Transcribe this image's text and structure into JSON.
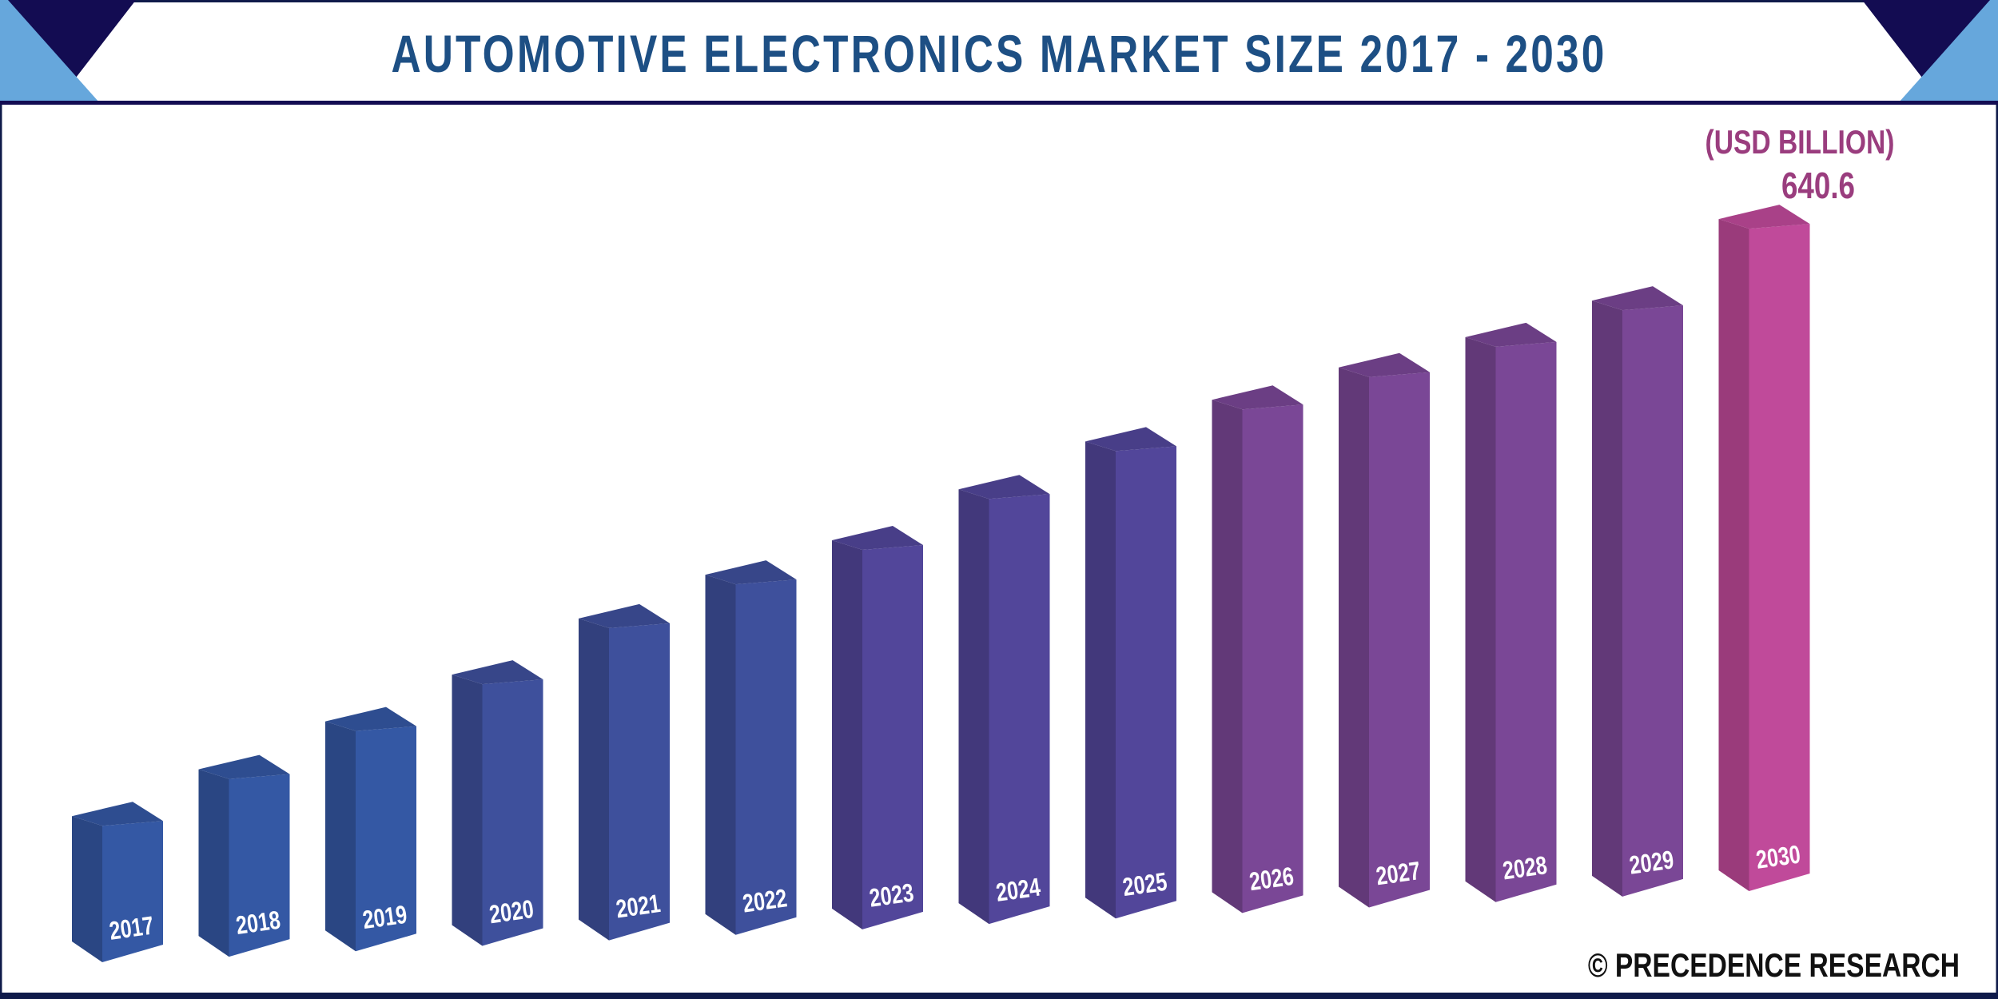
{
  "title": "AUTOMOTIVE ELECTRONICS MARKET SIZE 2017 - 2030",
  "brand": "© PRECEDENCE RESEARCH",
  "colors": {
    "title": "#1d4f84",
    "frame": "#0f1a4a",
    "accent_light": "#66a7dc",
    "accent_dark": "#130c52",
    "unit": "#9a3d7e"
  },
  "chart_data": {
    "type": "bar",
    "style": "3d-columns",
    "title": "AUTOMOTIVE ELECTRONICS MARKET SIZE 2017 - 2030",
    "unit_label": "(USD BILLION)",
    "categories": [
      "2017",
      "2018",
      "2019",
      "2020",
      "2021",
      "2022",
      "2023",
      "2024",
      "2025",
      "2026",
      "2027",
      "2028",
      "2029",
      "2030"
    ],
    "values": [
      132,
      172,
      213,
      253,
      302,
      339,
      367,
      411,
      452,
      487,
      513,
      537,
      567,
      640.6
    ],
    "data_labels": [
      {
        "category": "2030",
        "text": "640.6"
      }
    ],
    "bar_colors": [
      "#3458a4",
      "#3458a4",
      "#3458a4",
      "#3e509c",
      "#3e509c",
      "#3e509c",
      "#52469a",
      "#52469a",
      "#52469a",
      "#7a4796",
      "#7a4796",
      "#7a4796",
      "#7a4796",
      "#c04a9a"
    ],
    "axes_visible": false,
    "grid": false,
    "legend": "none"
  }
}
